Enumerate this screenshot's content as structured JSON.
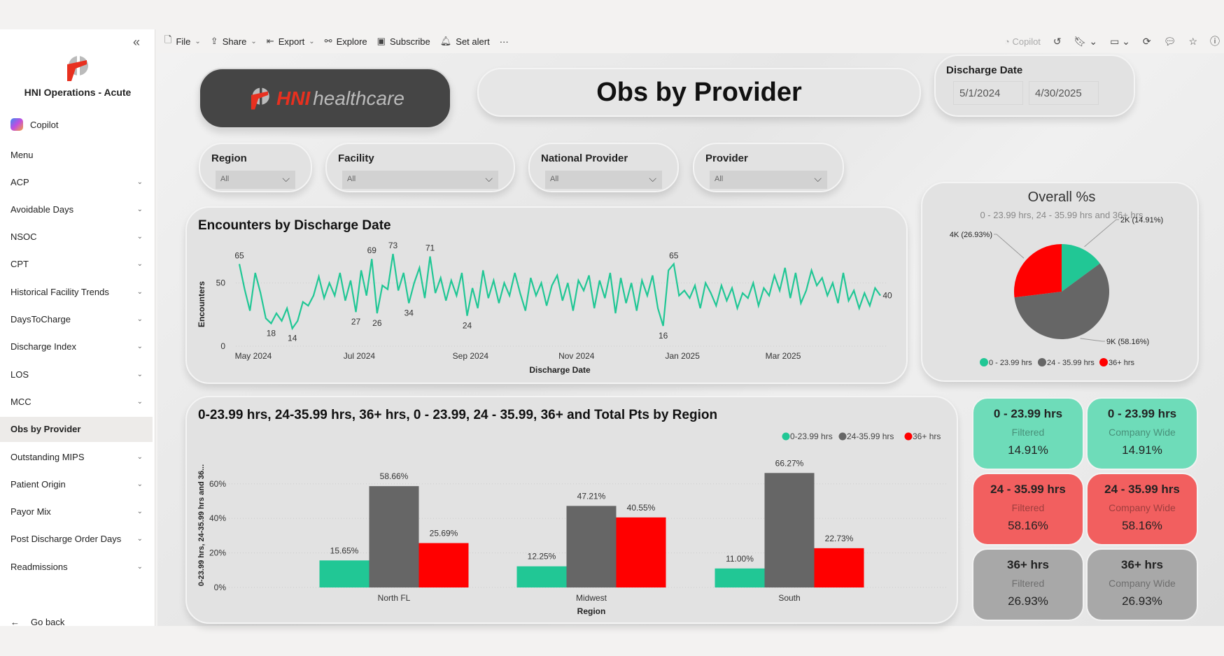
{
  "sidebar": {
    "app_name": "HNI Operations - Acute",
    "copilot": "Copilot",
    "menu": "Menu",
    "items": [
      {
        "label": "ACP",
        "chevron": true
      },
      {
        "label": "Avoidable Days",
        "chevron": true
      },
      {
        "label": "NSOC",
        "chevron": true
      },
      {
        "label": "CPT",
        "chevron": true
      },
      {
        "label": "Historical Facility Trends",
        "chevron": true
      },
      {
        "label": "DaysToCharge",
        "chevron": true
      },
      {
        "label": "Discharge Index",
        "chevron": true
      },
      {
        "label": "LOS",
        "chevron": true
      },
      {
        "label": "MCC",
        "chevron": true
      },
      {
        "label": "Obs by Provider",
        "chevron": false,
        "selected": true
      },
      {
        "label": "Outstanding MIPS",
        "chevron": true
      },
      {
        "label": "Patient Origin",
        "chevron": true
      },
      {
        "label": "Payor Mix",
        "chevron": true
      },
      {
        "label": "Post Discharge Order Days",
        "chevron": true
      },
      {
        "label": "Readmissions",
        "chevron": true
      }
    ],
    "go_back": "Go back"
  },
  "toolbar": {
    "file": "File",
    "share": "Share",
    "export": "Export",
    "explore": "Explore",
    "subscribe": "Subscribe",
    "set_alert": "Set alert",
    "more": "···",
    "copilot": "Copilot"
  },
  "header": {
    "logo_text_hni": "HNI",
    "logo_text_rest": "healthcare",
    "title": "Obs by Provider"
  },
  "date_filter": {
    "label": "Discharge Date",
    "start": "5/1/2024",
    "end": "4/30/2025"
  },
  "slicers": [
    {
      "label": "Region",
      "value": "All"
    },
    {
      "label": "Facility",
      "value": "All"
    },
    {
      "label": "National Provider",
      "value": "All"
    },
    {
      "label": "Provider",
      "value": "All"
    }
  ],
  "kpis": [
    {
      "title": "0 - 23.99 hrs",
      "sub": "Filtered",
      "value": "14.91%",
      "color": "#6edcb9"
    },
    {
      "title": "0 - 23.99 hrs",
      "sub": "Company Wide",
      "value": "14.91%",
      "color": "#6edcb9"
    },
    {
      "title": "24 - 35.99 hrs",
      "sub": "Filtered",
      "value": "58.16%",
      "color": "#f25f5f"
    },
    {
      "title": "24 - 35.99 hrs",
      "sub": "Company Wide",
      "value": "58.16%",
      "color": "#f25f5f"
    },
    {
      "title": "36+ hrs",
      "sub": "Filtered",
      "value": "26.93%",
      "color": "#a8a8a8"
    },
    {
      "title": "36+ hrs",
      "sub": "Company Wide",
      "value": "26.93%",
      "color": "#a8a8a8"
    }
  ],
  "chart_data": [
    {
      "type": "line",
      "title": "Encounters by Discharge Date",
      "xlabel": "Discharge Date",
      "ylabel": "Encounters",
      "ylim": [
        0,
        73
      ],
      "yticks": [
        "0",
        "50"
      ],
      "ytick_values": [
        0,
        50
      ],
      "xticks": [
        "May 2024",
        "Jul 2024",
        "Sep 2024",
        "Nov 2024",
        "Jan 2025",
        "Mar 2025"
      ],
      "xtick_index": [
        0,
        20,
        41,
        61,
        81,
        100
      ],
      "color": "#21c795",
      "values": [
        65,
        45,
        28,
        58,
        42,
        22,
        18,
        26,
        20,
        30,
        14,
        20,
        35,
        32,
        40,
        55,
        38,
        50,
        40,
        58,
        36,
        52,
        27,
        60,
        40,
        69,
        26,
        48,
        45,
        73,
        44,
        58,
        34,
        50,
        62,
        38,
        71,
        42,
        54,
        36,
        52,
        40,
        58,
        24,
        46,
        30,
        60,
        38,
        52,
        34,
        50,
        40,
        58,
        42,
        28,
        54,
        40,
        50,
        32,
        48,
        56,
        36,
        50,
        28,
        52,
        44,
        56,
        30,
        52,
        38,
        58,
        26,
        54,
        34,
        50,
        28,
        52,
        40,
        56,
        30,
        16,
        60,
        65,
        40,
        44,
        38,
        48,
        30,
        50,
        42,
        32,
        48,
        36,
        46,
        30,
        42,
        38,
        50,
        32,
        46,
        40,
        56,
        44,
        62,
        38,
        58,
        34,
        44,
        60,
        48,
        54,
        40,
        50,
        34,
        58,
        36,
        44,
        30,
        42,
        32,
        46,
        40
      ],
      "annotations": [
        {
          "index": 0,
          "label": "65",
          "pos": "above"
        },
        {
          "index": 6,
          "label": "18",
          "pos": "below"
        },
        {
          "index": 10,
          "label": "14",
          "pos": "below"
        },
        {
          "index": 22,
          "label": "27",
          "pos": "below"
        },
        {
          "index": 25,
          "label": "69",
          "pos": "above"
        },
        {
          "index": 26,
          "label": "26",
          "pos": "below"
        },
        {
          "index": 29,
          "label": "73",
          "pos": "above"
        },
        {
          "index": 32,
          "label": "34",
          "pos": "below"
        },
        {
          "index": 36,
          "label": "71",
          "pos": "above"
        },
        {
          "index": 43,
          "label": "24",
          "pos": "below"
        },
        {
          "index": 80,
          "label": "16",
          "pos": "below"
        },
        {
          "index": 82,
          "label": "65",
          "pos": "above"
        },
        {
          "index": 121,
          "label": "40",
          "pos": "right"
        }
      ]
    },
    {
      "type": "pie",
      "title": "Overall %s",
      "subtitle": "0 - 23.99 hrs, 24 - 35.99 hrs and 36+ hrs",
      "slices": [
        {
          "name": "0 - 23.99 hrs",
          "percent": 14.91,
          "label": "2K (14.91%)",
          "color": "#21c795"
        },
        {
          "name": "24 - 35.99 hrs",
          "percent": 58.16,
          "label": "9K (58.16%)",
          "color": "#666666"
        },
        {
          "name": "36+ hrs",
          "percent": 26.93,
          "label": "4K (26.93%)",
          "color": "#ff0000"
        }
      ],
      "legend": "bottom"
    },
    {
      "type": "bar",
      "title": "0-23.99 hrs, 24-35.99 hrs, 36+ hrs, 0 - 23.99, 24 - 35.99, 36+ and Total Pts by Region",
      "xlabel": "Region",
      "ylabel": "0-23.99 hrs, 24-35.99 hrs and 36...",
      "categories": [
        "North FL",
        "Midwest",
        "South"
      ],
      "ylim": [
        0,
        70
      ],
      "yticks": [
        "0%",
        "20%",
        "40%",
        "60%"
      ],
      "ytick_values": [
        0,
        20,
        40,
        60
      ],
      "series": [
        {
          "name": "0-23.99 hrs",
          "color": "#21c795",
          "values": [
            15.65,
            12.25,
            11.0
          ],
          "labels": [
            "15.65%",
            "12.25%",
            "11.00%"
          ]
        },
        {
          "name": "24-35.99 hrs",
          "color": "#666666",
          "values": [
            58.66,
            47.21,
            66.27
          ],
          "labels": [
            "58.66%",
            "47.21%",
            "66.27%"
          ]
        },
        {
          "name": "36+ hrs",
          "color": "#ff0000",
          "values": [
            25.69,
            40.55,
            22.73
          ],
          "labels": [
            "25.69%",
            "40.55%",
            "22.73%"
          ]
        }
      ],
      "legend": "top-right"
    }
  ]
}
